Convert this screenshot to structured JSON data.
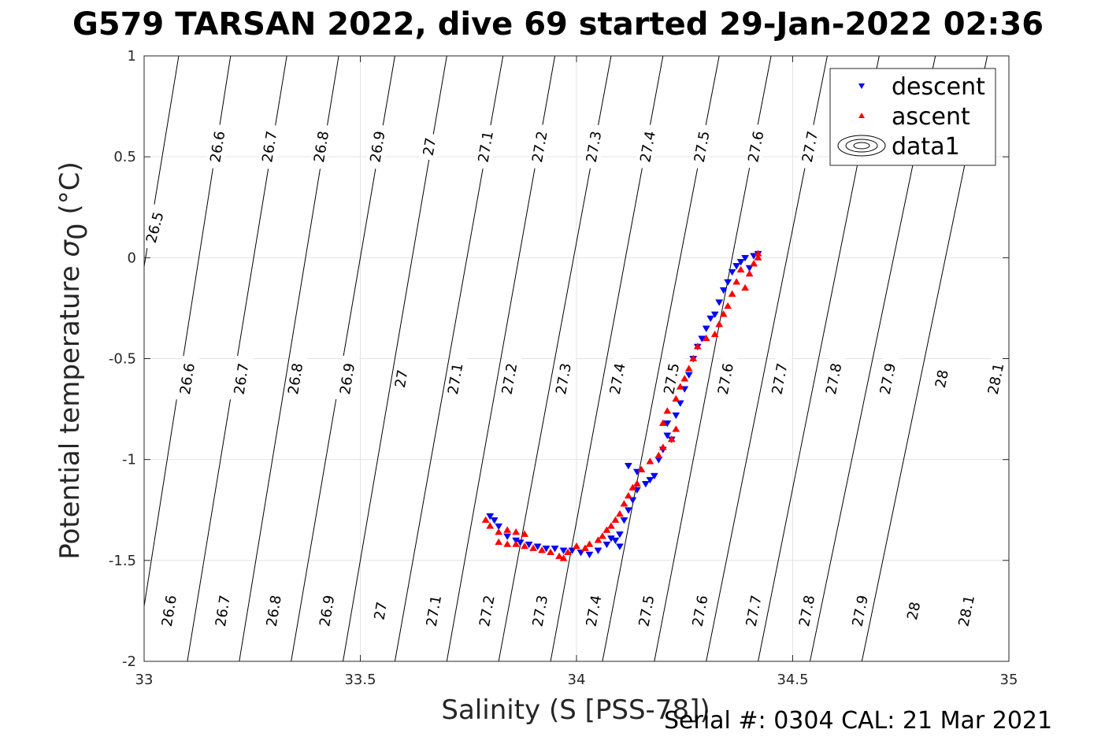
{
  "title": "G579 TARSAN 2022, dive 69 started 29-Jan-2022 02:36",
  "footer": "Serial #: 0304  CAL: 21 Mar 2021",
  "chart_data": {
    "type": "scatter",
    "xlabel": "Salinity (S [PSS-78])",
    "ylabel_main": "Potential temperature ",
    "ylabel_sigma": "σ",
    "ylabel_sub": "0",
    "ylabel_unit": " (°C)",
    "xlim": [
      33,
      35
    ],
    "ylim": [
      -2,
      1
    ],
    "xticks": [
      33,
      33.5,
      34,
      34.5,
      35
    ],
    "xtick_labels": [
      "33",
      "33.5",
      "34",
      "34.5",
      "35"
    ],
    "yticks": [
      -2,
      -1.5,
      -1,
      -0.5,
      0,
      0.5,
      1
    ],
    "ytick_labels": [
      "-2",
      "-1.5",
      "-1",
      "-0.5",
      "0",
      "0.5",
      "1"
    ],
    "grid": true,
    "legend_position": "top-right",
    "legend": [
      {
        "label": "descent",
        "marker": "triangle-down",
        "color": "#0000ff"
      },
      {
        "label": "ascent",
        "marker": "triangle-up",
        "color": "#ff0000"
      },
      {
        "label": "data1",
        "marker": "contour-ellipses",
        "color": "#000000"
      }
    ],
    "contours": [
      {
        "level": "26.5",
        "labels": [
          [
            33.025,
            0.15
          ]
        ],
        "s_at_top": 33.0,
        "s_at_bottom": 32.62
      },
      {
        "level": "26.6",
        "labels": [
          [
            33.17,
            0.55
          ],
          [
            33.1,
            -0.6
          ],
          [
            33.058,
            -1.75
          ]
        ],
        "s_at_top": 33.08,
        "s_at_bottom": 32.85
      },
      {
        "level": "26.7",
        "labels": [
          [
            33.29,
            0.55
          ],
          [
            33.225,
            -0.6
          ],
          [
            33.182,
            -1.75
          ]
        ],
        "s_at_top": 33.2,
        "s_at_bottom": 32.98
      },
      {
        "level": "26.8",
        "labels": [
          [
            33.41,
            0.55
          ],
          [
            33.35,
            -0.6
          ],
          [
            33.3,
            -1.75
          ]
        ],
        "s_at_top": 33.33,
        "s_at_bottom": 33.1
      },
      {
        "level": "26.9",
        "labels": [
          [
            33.54,
            0.55
          ],
          [
            33.47,
            -0.6
          ],
          [
            33.423,
            -1.75
          ]
        ],
        "s_at_top": 33.45,
        "s_at_bottom": 33.22
      },
      {
        "level": "27",
        "labels": [
          [
            33.66,
            0.55
          ],
          [
            33.595,
            -0.6
          ],
          [
            33.547,
            -1.75
          ]
        ],
        "s_at_top": 33.58,
        "s_at_bottom": 33.34
      },
      {
        "level": "27.1",
        "labels": [
          [
            33.79,
            0.55
          ],
          [
            33.72,
            -0.6
          ],
          [
            33.67,
            -1.75
          ]
        ],
        "s_at_top": 33.7,
        "s_at_bottom": 33.46
      },
      {
        "level": "27.2",
        "labels": [
          [
            33.915,
            0.55
          ],
          [
            33.845,
            -0.6
          ],
          [
            33.793,
            -1.75
          ]
        ],
        "s_at_top": 33.83,
        "s_at_bottom": 33.58
      },
      {
        "level": "27.3",
        "labels": [
          [
            34.04,
            0.55
          ],
          [
            33.97,
            -0.6
          ],
          [
            33.916,
            -1.75
          ]
        ],
        "s_at_top": 33.95,
        "s_at_bottom": 33.7
      },
      {
        "level": "27.4",
        "labels": [
          [
            34.165,
            0.55
          ],
          [
            34.095,
            -0.6
          ],
          [
            34.04,
            -1.75
          ]
        ],
        "s_at_top": 34.08,
        "s_at_bottom": 33.82
      },
      {
        "level": "27.5",
        "labels": [
          [
            34.29,
            0.55
          ],
          [
            34.22,
            -0.6
          ],
          [
            34.162,
            -1.75
          ]
        ],
        "s_at_top": 34.2,
        "s_at_bottom": 33.94
      },
      {
        "level": "27.6",
        "labels": [
          [
            34.415,
            0.55
          ],
          [
            34.345,
            -0.6
          ],
          [
            34.286,
            -1.75
          ]
        ],
        "s_at_top": 34.33,
        "s_at_bottom": 34.06
      },
      {
        "level": "27.7",
        "labels": [
          [
            34.54,
            0.55
          ],
          [
            34.47,
            -0.6
          ],
          [
            34.41,
            -1.75
          ]
        ],
        "s_at_top": 34.45,
        "s_at_bottom": 34.18
      },
      {
        "level": "27.8",
        "labels": [
          [
            34.595,
            -0.6
          ],
          [
            34.533,
            -1.75
          ]
        ],
        "s_at_top": 34.58,
        "s_at_bottom": 34.3
      },
      {
        "level": "27.9",
        "labels": [
          [
            34.72,
            -0.6
          ],
          [
            34.656,
            -1.75
          ]
        ],
        "s_at_top": 34.7,
        "s_at_bottom": 34.42
      },
      {
        "level": "28",
        "labels": [
          [
            34.845,
            -0.6
          ],
          [
            34.78,
            -1.75
          ]
        ],
        "s_at_top": 34.83,
        "s_at_bottom": 34.54
      },
      {
        "level": "28.1",
        "labels": [
          [
            34.97,
            -0.6
          ],
          [
            34.902,
            -1.75
          ]
        ],
        "s_at_top": 34.95,
        "s_at_bottom": 34.66
      }
    ],
    "series": [
      {
        "name": "descent",
        "marker": "triangle-down",
        "color": "#0000ff",
        "points": [
          [
            33.8,
            -1.28
          ],
          [
            33.81,
            -1.3
          ],
          [
            33.82,
            -1.33
          ],
          [
            33.84,
            -1.38
          ],
          [
            33.86,
            -1.4
          ],
          [
            33.87,
            -1.41
          ],
          [
            33.89,
            -1.42
          ],
          [
            33.91,
            -1.43
          ],
          [
            33.93,
            -1.44
          ],
          [
            33.95,
            -1.44
          ],
          [
            33.97,
            -1.45
          ],
          [
            33.99,
            -1.45
          ],
          [
            34.01,
            -1.46
          ],
          [
            34.03,
            -1.47
          ],
          [
            34.05,
            -1.45
          ],
          [
            34.07,
            -1.42
          ],
          [
            34.08,
            -1.39
          ],
          [
            34.09,
            -1.4
          ],
          [
            34.1,
            -1.43
          ],
          [
            34.1,
            -1.37
          ],
          [
            34.11,
            -1.3
          ],
          [
            34.12,
            -1.25
          ],
          [
            34.13,
            -1.2
          ],
          [
            34.14,
            -1.15
          ],
          [
            34.16,
            -1.12
          ],
          [
            34.17,
            -1.1
          ],
          [
            34.18,
            -1.08
          ],
          [
            34.12,
            -1.03
          ],
          [
            34.14,
            -1.06
          ],
          [
            34.19,
            -1.0
          ],
          [
            34.2,
            -0.95
          ],
          [
            34.21,
            -0.88
          ],
          [
            34.21,
            -0.82
          ],
          [
            34.22,
            -0.9
          ],
          [
            34.23,
            -0.78
          ],
          [
            34.24,
            -0.72
          ],
          [
            34.25,
            -0.65
          ],
          [
            34.26,
            -0.58
          ],
          [
            34.27,
            -0.5
          ],
          [
            34.28,
            -0.44
          ],
          [
            34.29,
            -0.4
          ],
          [
            34.3,
            -0.35
          ],
          [
            34.31,
            -0.3
          ],
          [
            34.32,
            -0.28
          ],
          [
            34.33,
            -0.22
          ],
          [
            34.34,
            -0.16
          ],
          [
            34.35,
            -0.12
          ],
          [
            34.36,
            -0.07
          ],
          [
            34.37,
            -0.04
          ],
          [
            34.38,
            -0.02
          ],
          [
            34.39,
            0.0
          ],
          [
            34.4,
            -0.05
          ],
          [
            34.41,
            0.01
          ],
          [
            34.42,
            0.02
          ]
        ]
      },
      {
        "name": "ascent",
        "marker": "triangle-up",
        "color": "#ff0000",
        "points": [
          [
            33.79,
            -1.3
          ],
          [
            33.8,
            -1.33
          ],
          [
            33.82,
            -1.36
          ],
          [
            33.84,
            -1.35
          ],
          [
            33.86,
            -1.36
          ],
          [
            33.88,
            -1.37
          ],
          [
            33.82,
            -1.41
          ],
          [
            33.84,
            -1.42
          ],
          [
            33.86,
            -1.42
          ],
          [
            33.88,
            -1.43
          ],
          [
            33.9,
            -1.44
          ],
          [
            33.92,
            -1.45
          ],
          [
            33.94,
            -1.46
          ],
          [
            33.96,
            -1.48
          ],
          [
            33.97,
            -1.49
          ],
          [
            33.98,
            -1.46
          ],
          [
            34.0,
            -1.43
          ],
          [
            34.02,
            -1.44
          ],
          [
            34.03,
            -1.42
          ],
          [
            34.05,
            -1.4
          ],
          [
            34.06,
            -1.38
          ],
          [
            34.07,
            -1.35
          ],
          [
            34.08,
            -1.33
          ],
          [
            34.09,
            -1.3
          ],
          [
            34.1,
            -1.27
          ],
          [
            34.11,
            -1.22
          ],
          [
            34.12,
            -1.18
          ],
          [
            34.13,
            -1.14
          ],
          [
            34.14,
            -1.12
          ],
          [
            34.15,
            -1.05
          ],
          [
            34.17,
            -1.01
          ],
          [
            34.19,
            -0.98
          ],
          [
            34.2,
            -0.94
          ],
          [
            34.22,
            -0.9
          ],
          [
            34.23,
            -0.85
          ],
          [
            34.2,
            -0.82
          ],
          [
            34.21,
            -0.76
          ],
          [
            34.23,
            -0.7
          ],
          [
            34.24,
            -0.64
          ],
          [
            34.25,
            -0.6
          ],
          [
            34.26,
            -0.55
          ],
          [
            34.27,
            -0.5
          ],
          [
            34.28,
            -0.44
          ],
          [
            34.3,
            -0.4
          ],
          [
            34.32,
            -0.38
          ],
          [
            34.33,
            -0.33
          ],
          [
            34.34,
            -0.28
          ],
          [
            34.35,
            -0.24
          ],
          [
            34.36,
            -0.18
          ],
          [
            34.37,
            -0.12
          ],
          [
            34.38,
            -0.06
          ],
          [
            34.39,
            -0.15
          ],
          [
            34.4,
            -0.08
          ],
          [
            34.41,
            -0.03
          ],
          [
            34.42,
            0.02
          ],
          [
            34.42,
            0.0
          ]
        ]
      }
    ]
  }
}
